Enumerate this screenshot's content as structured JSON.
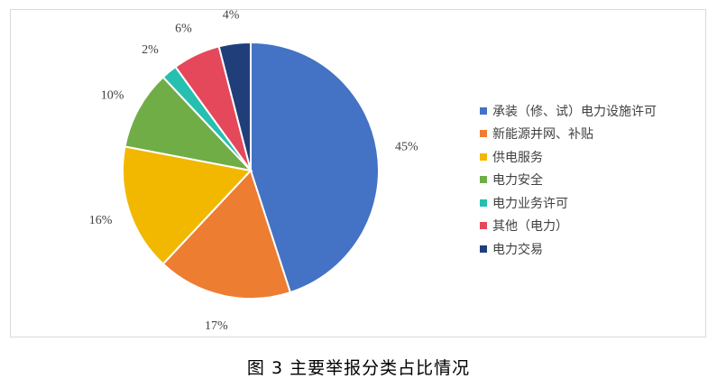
{
  "chart_data": {
    "type": "pie",
    "categories": [
      "承装（修、试）电力设施许可",
      "新能源并网、补贴",
      "供电服务",
      "电力安全",
      "电力业务许可",
      "其他（电力）",
      "电力交易"
    ],
    "values": [
      45,
      17,
      16,
      10,
      2,
      6,
      4
    ],
    "data_labels": [
      "45%",
      "17%",
      "16%",
      "10%",
      "2%",
      "6%",
      "4%"
    ],
    "colors": [
      "#4472C4",
      "#ED7D31",
      "#F2B800",
      "#70AD47",
      "#26BFB0",
      "#E5485B",
      "#203F7A"
    ],
    "legend_position": "right"
  },
  "caption": "图 3  主要举报分类占比情况"
}
